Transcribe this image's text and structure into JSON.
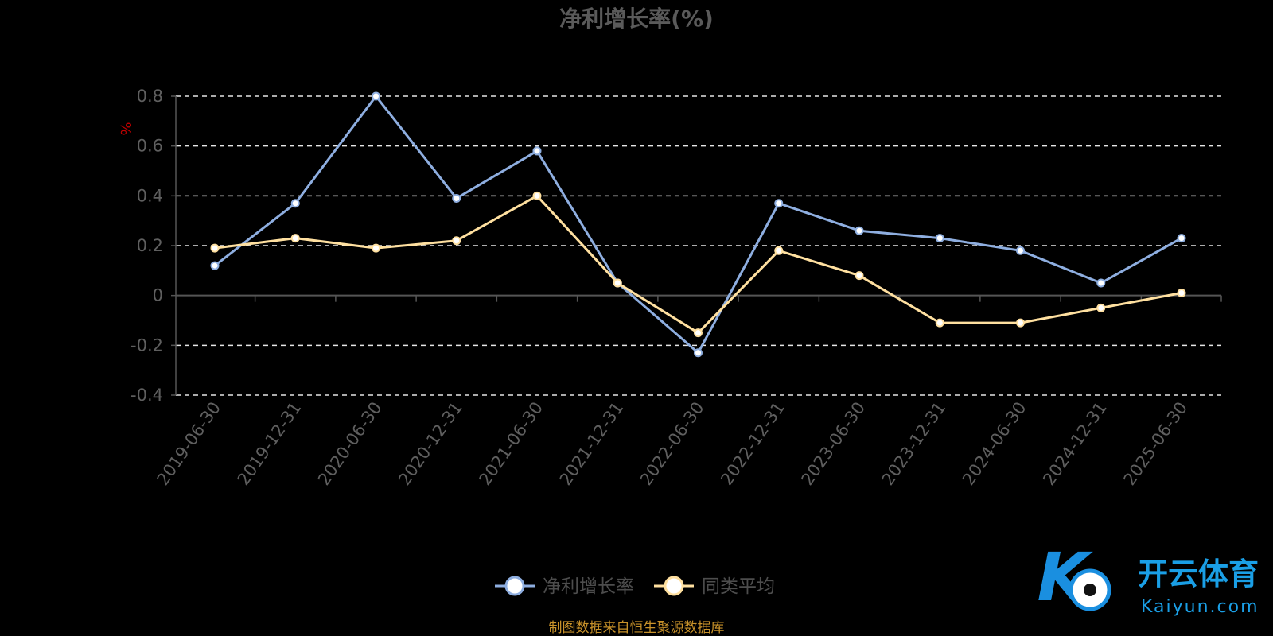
{
  "chart_data": {
    "type": "line",
    "title": "净利增长率(%)",
    "ylabel": "%",
    "ylim": [
      -0.4,
      0.8
    ],
    "yticks": [
      0.8,
      0.6,
      0.4,
      0.2,
      0,
      -0.2,
      -0.4
    ],
    "ytick_labels": [
      "0.8",
      "0.6",
      "0.4",
      "0.2",
      "0",
      "-0.2",
      "-0.4"
    ],
    "grid": true,
    "legend_position": "bottom-center",
    "x": [
      "2019-06-30",
      "2019-12-31",
      "2020-06-30",
      "2020-12-31",
      "2021-06-30",
      "2021-12-31",
      "2022-06-30",
      "2022-12-31",
      "2023-06-30",
      "2023-12-31",
      "2024-06-30",
      "2024-12-31",
      "2025-06-30"
    ],
    "series": [
      {
        "name": "净利增长率",
        "color": "#8eaee0",
        "values": [
          0.12,
          0.37,
          0.8,
          0.39,
          0.58,
          0.05,
          -0.23,
          0.37,
          0.26,
          0.23,
          0.18,
          0.05,
          0.23
        ]
      },
      {
        "name": "同类平均",
        "color": "#ffe0a0",
        "values": [
          0.19,
          0.23,
          0.19,
          0.22,
          0.4,
          0.05,
          -0.15,
          0.18,
          0.08,
          -0.11,
          -0.11,
          -0.05,
          0.01
        ]
      }
    ]
  },
  "source_note": "制图数据来自恒生聚源数据库",
  "watermark": {
    "cn": "开云体育",
    "en": "Kaiyun.com"
  }
}
